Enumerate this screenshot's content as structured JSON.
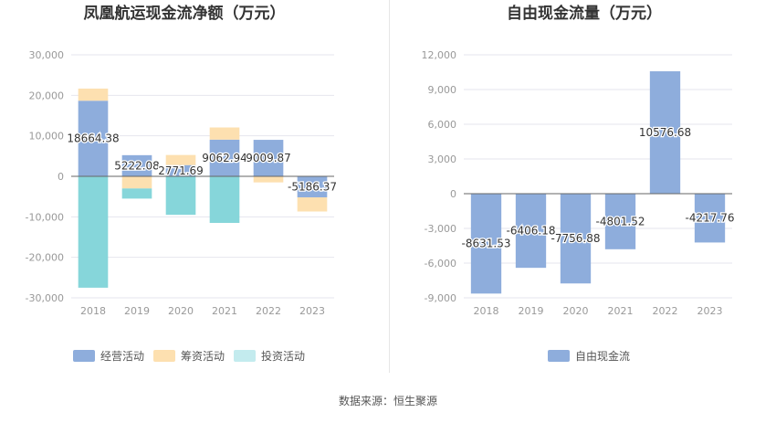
{
  "source": "数据来源：恒生聚源",
  "colors": {
    "operating": "#8eaddc",
    "financing": "#fde0b0",
    "investing": "#86d6da",
    "investing_legend": "#c3ebee",
    "fcf": "#8eaddc",
    "grid": "#e6e6ee",
    "axis_text": "#999999",
    "label_text": "#333333",
    "title": "#333333"
  },
  "chart_data": [
    {
      "type": "bar",
      "stacked": true,
      "title": "凤凰航运现金流净额（万元）",
      "categories": [
        "2018",
        "2019",
        "2020",
        "2021",
        "2022",
        "2023"
      ],
      "ylim": [
        -30000,
        30000
      ],
      "yticks": [
        30000,
        20000,
        10000,
        0,
        -10000,
        -20000,
        -30000
      ],
      "ytick_labels": [
        "30,000",
        "20,000",
        "10,000",
        "0",
        "-10,000",
        "-20,000",
        "-30,000"
      ],
      "series": [
        {
          "name": "经营活动",
          "key": "operating",
          "values": [
            18664.38,
            5222.08,
            2771.69,
            9062.94,
            9009.87,
            -5186.37
          ]
        },
        {
          "name": "筹资活动",
          "key": "financing",
          "values": [
            3000,
            -3000,
            2500,
            3000,
            -1500,
            -3500
          ]
        },
        {
          "name": "投资活动",
          "key": "investing",
          "values": [
            -27500,
            -2500,
            -9500,
            -11500,
            0,
            0
          ]
        }
      ],
      "data_labels": [
        "18664.38",
        "5222.08",
        "2771.69",
        "9062.94",
        "9009.87",
        "-5186.37"
      ],
      "legend": [
        "经营活动",
        "筹资活动",
        "投资活动"
      ]
    },
    {
      "type": "bar",
      "title": "自由现金流量（万元）",
      "categories": [
        "2018",
        "2019",
        "2020",
        "2021",
        "2022",
        "2023"
      ],
      "ylim": [
        -9000,
        12000
      ],
      "yticks": [
        12000,
        9000,
        6000,
        3000,
        0,
        -3000,
        -6000,
        -9000
      ],
      "ytick_labels": [
        "12,000",
        "9,000",
        "6,000",
        "3,000",
        "0",
        "-3,000",
        "-6,000",
        "-9,000"
      ],
      "series": [
        {
          "name": "自由现金流",
          "key": "fcf",
          "values": [
            -8631.53,
            -6406.18,
            -7756.88,
            -4801.52,
            10576.68,
            -4217.76
          ]
        }
      ],
      "data_labels": [
        "-8631.53",
        "-6406.18",
        "-7756.88",
        "-4801.52",
        "10576.68",
        "-4217.76"
      ],
      "legend": [
        "自由现金流"
      ]
    }
  ]
}
